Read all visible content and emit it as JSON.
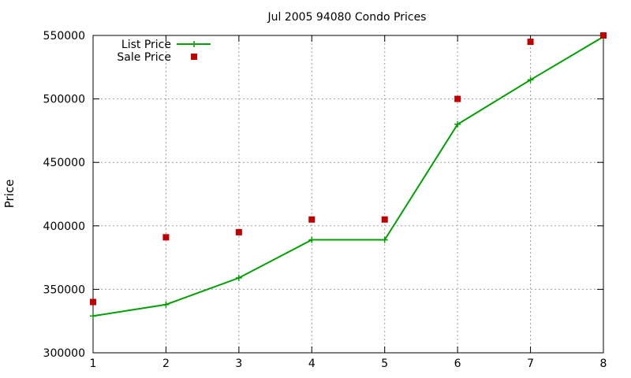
{
  "chart_data": {
    "type": "line",
    "title": "Jul 2005 94080 Condo Prices",
    "xlabel": "",
    "ylabel": "Price",
    "xlim": [
      1,
      8
    ],
    "ylim": [
      300000,
      550000
    ],
    "xticks": [
      "1",
      "2",
      "3",
      "4",
      "5",
      "6",
      "7",
      "8"
    ],
    "yticks": [
      "300000",
      "350000",
      "400000",
      "450000",
      "500000",
      "550000"
    ],
    "grid": true,
    "legend_position": "top-left",
    "x": [
      1,
      2,
      3,
      4,
      5,
      6,
      7,
      8
    ],
    "series": [
      {
        "name": "List Price",
        "style": "line-with-plus-markers",
        "color": "#00a000",
        "values": [
          329000,
          338000,
          359000,
          389000,
          389000,
          480000,
          515000,
          549000
        ]
      },
      {
        "name": "Sale Price",
        "style": "square-points",
        "color": "#c00000",
        "values": [
          340000,
          391000,
          395000,
          405000,
          405000,
          500000,
          545000,
          550000
        ]
      }
    ]
  }
}
